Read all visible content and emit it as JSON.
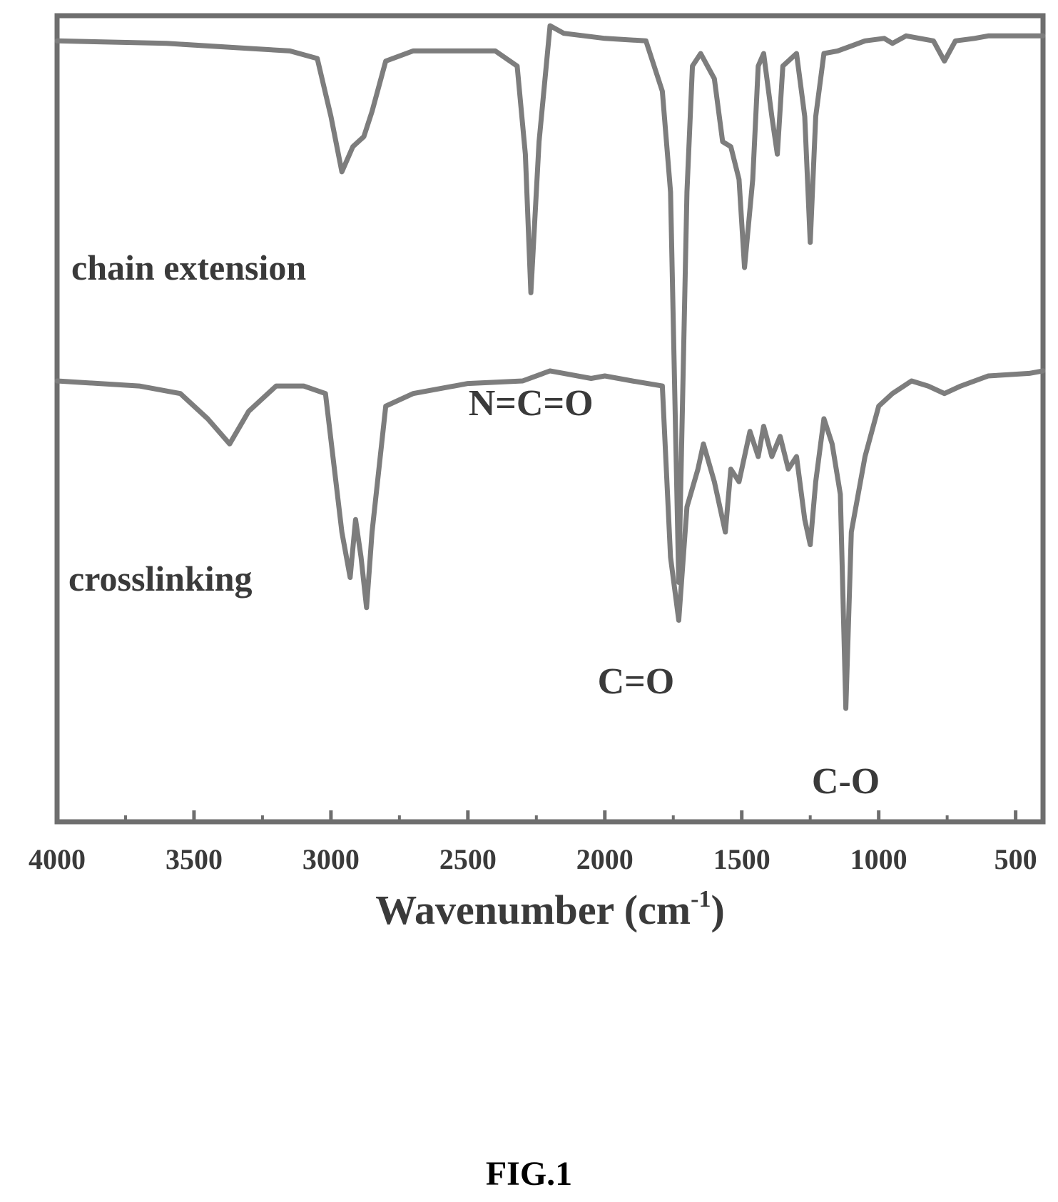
{
  "chart_data": {
    "type": "line",
    "xlabel": "Wavenumber (cm",
    "xlabel_superscript": "-1",
    "xlabel_close": ")",
    "x_axis": "reversed",
    "xlim": [
      4000,
      400
    ],
    "xticks": [
      4000,
      3500,
      3000,
      2500,
      2000,
      1500,
      1000,
      500
    ],
    "grid": false,
    "y_ticks_shown": false,
    "series": [
      {
        "name": "chain extension",
        "color": "#7d7d7d",
        "y_offset": 1.0,
        "points": [
          [
            4000,
            0.0
          ],
          [
            3600,
            -0.01
          ],
          [
            3300,
            -0.03
          ],
          [
            3150,
            -0.04
          ],
          [
            3050,
            -0.07
          ],
          [
            3000,
            -0.3
          ],
          [
            2960,
            -0.52
          ],
          [
            2920,
            -0.42
          ],
          [
            2880,
            -0.38
          ],
          [
            2850,
            -0.28
          ],
          [
            2800,
            -0.08
          ],
          [
            2700,
            -0.04
          ],
          [
            2400,
            -0.04
          ],
          [
            2320,
            -0.1
          ],
          [
            2290,
            -0.45
          ],
          [
            2270,
            -1.0
          ],
          [
            2240,
            -0.4
          ],
          [
            2200,
            0.06
          ],
          [
            2150,
            0.03
          ],
          [
            2000,
            0.01
          ],
          [
            1850,
            0.0
          ],
          [
            1790,
            -0.2
          ],
          [
            1760,
            -0.6
          ],
          [
            1730,
            -2.15
          ],
          [
            1700,
            -0.6
          ],
          [
            1680,
            -0.1
          ],
          [
            1650,
            -0.05
          ],
          [
            1600,
            -0.15
          ],
          [
            1570,
            -0.4
          ],
          [
            1540,
            -0.42
          ],
          [
            1510,
            -0.55
          ],
          [
            1490,
            -0.9
          ],
          [
            1460,
            -0.55
          ],
          [
            1440,
            -0.1
          ],
          [
            1420,
            -0.05
          ],
          [
            1390,
            -0.3
          ],
          [
            1370,
            -0.45
          ],
          [
            1350,
            -0.1
          ],
          [
            1300,
            -0.05
          ],
          [
            1270,
            -0.3
          ],
          [
            1250,
            -0.8
          ],
          [
            1230,
            -0.3
          ],
          [
            1200,
            -0.05
          ],
          [
            1150,
            -0.04
          ],
          [
            1100,
            -0.02
          ],
          [
            1050,
            0.0
          ],
          [
            980,
            0.01
          ],
          [
            950,
            -0.01
          ],
          [
            900,
            0.02
          ],
          [
            800,
            0.0
          ],
          [
            760,
            -0.08
          ],
          [
            720,
            0.0
          ],
          [
            650,
            0.01
          ],
          [
            600,
            0.02
          ],
          [
            400,
            0.02
          ]
        ]
      },
      {
        "name": "crosslinking",
        "color": "#7d7d7d",
        "y_offset": -0.35,
        "points": [
          [
            4000,
            0.0
          ],
          [
            3700,
            -0.02
          ],
          [
            3550,
            -0.05
          ],
          [
            3450,
            -0.15
          ],
          [
            3370,
            -0.25
          ],
          [
            3300,
            -0.12
          ],
          [
            3200,
            -0.02
          ],
          [
            3100,
            -0.02
          ],
          [
            3020,
            -0.05
          ],
          [
            2960,
            -0.6
          ],
          [
            2930,
            -0.78
          ],
          [
            2910,
            -0.55
          ],
          [
            2890,
            -0.7
          ],
          [
            2870,
            -0.9
          ],
          [
            2850,
            -0.6
          ],
          [
            2800,
            -0.1
          ],
          [
            2700,
            -0.05
          ],
          [
            2500,
            -0.01
          ],
          [
            2300,
            0.0
          ],
          [
            2200,
            0.04
          ],
          [
            2150,
            0.03
          ],
          [
            2050,
            0.01
          ],
          [
            2000,
            0.02
          ],
          [
            1900,
            0.0
          ],
          [
            1790,
            -0.02
          ],
          [
            1760,
            -0.7
          ],
          [
            1730,
            -0.95
          ],
          [
            1700,
            -0.5
          ],
          [
            1660,
            -0.35
          ],
          [
            1640,
            -0.25
          ],
          [
            1600,
            -0.4
          ],
          [
            1560,
            -0.6
          ],
          [
            1540,
            -0.35
          ],
          [
            1510,
            -0.4
          ],
          [
            1470,
            -0.2
          ],
          [
            1440,
            -0.3
          ],
          [
            1420,
            -0.18
          ],
          [
            1390,
            -0.3
          ],
          [
            1360,
            -0.22
          ],
          [
            1330,
            -0.35
          ],
          [
            1300,
            -0.3
          ],
          [
            1270,
            -0.55
          ],
          [
            1250,
            -0.65
          ],
          [
            1230,
            -0.4
          ],
          [
            1200,
            -0.15
          ],
          [
            1170,
            -0.25
          ],
          [
            1140,
            -0.45
          ],
          [
            1120,
            -1.3
          ],
          [
            1100,
            -0.6
          ],
          [
            1050,
            -0.3
          ],
          [
            1000,
            -0.1
          ],
          [
            950,
            -0.05
          ],
          [
            880,
            0.0
          ],
          [
            820,
            -0.02
          ],
          [
            760,
            -0.05
          ],
          [
            700,
            -0.02
          ],
          [
            600,
            0.02
          ],
          [
            450,
            0.03
          ],
          [
            400,
            0.04
          ]
        ]
      }
    ],
    "annotations": [
      {
        "text": "N=C=O",
        "x": 2270
      },
      {
        "text": "C=O",
        "x": 1730
      },
      {
        "text": "C-O",
        "x": 1120
      }
    ]
  },
  "caption": "FIG.1"
}
